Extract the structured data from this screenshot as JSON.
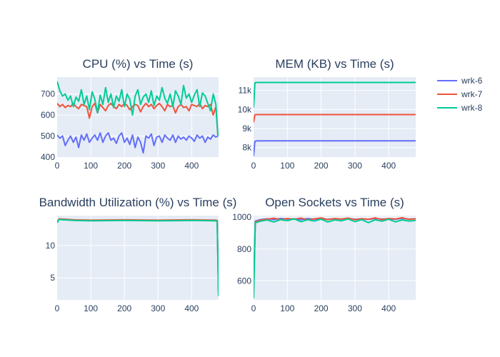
{
  "legend": {
    "items": [
      {
        "name": "wrk-6",
        "color": "#636efa"
      },
      {
        "name": "wrk-7",
        "color": "#ef553b"
      },
      {
        "name": "wrk-8",
        "color": "#00cc96"
      }
    ]
  },
  "chart_data": [
    {
      "type": "line",
      "title": "CPU (%) vs Time (s)",
      "xlabel": "",
      "ylabel": "",
      "xlim": [
        0,
        480
      ],
      "ylim": [
        400,
        780
      ],
      "xticks": [
        0,
        100,
        200,
        300,
        400
      ],
      "yticks": [
        400,
        500,
        600,
        700
      ],
      "ytick_labels": [
        "400",
        "500",
        "600",
        "700"
      ],
      "grid": true,
      "series": [
        {
          "name": "wrk-6",
          "color": "#636efa",
          "x": [
            0,
            8,
            16,
            24,
            32,
            40,
            48,
            56,
            64,
            72,
            80,
            88,
            96,
            104,
            112,
            120,
            128,
            136,
            144,
            152,
            160,
            168,
            176,
            184,
            192,
            200,
            208,
            216,
            224,
            232,
            240,
            248,
            256,
            264,
            272,
            280,
            288,
            296,
            304,
            312,
            320,
            328,
            336,
            344,
            352,
            360,
            368,
            376,
            384,
            392,
            400,
            408,
            416,
            424,
            432,
            440,
            448,
            456,
            464,
            472,
            478
          ],
          "y": [
            505,
            490,
            500,
            455,
            480,
            500,
            470,
            495,
            445,
            505,
            480,
            510,
            470,
            490,
            505,
            480,
            515,
            470,
            500,
            515,
            480,
            490,
            465,
            500,
            515,
            470,
            490,
            460,
            505,
            445,
            495,
            470,
            420,
            500,
            490,
            510,
            455,
            495,
            500,
            470,
            505,
            490,
            480,
            505,
            470,
            500,
            485,
            495,
            480,
            500,
            490,
            475,
            505,
            490,
            500,
            470,
            495,
            485,
            505,
            495,
            500
          ]
        },
        {
          "name": "wrk-7",
          "color": "#ef553b",
          "x": [
            0,
            8,
            16,
            24,
            32,
            40,
            48,
            56,
            64,
            72,
            80,
            88,
            96,
            104,
            112,
            120,
            128,
            136,
            144,
            152,
            160,
            168,
            176,
            184,
            192,
            200,
            208,
            216,
            224,
            232,
            240,
            248,
            256,
            264,
            272,
            280,
            288,
            296,
            304,
            312,
            320,
            328,
            336,
            344,
            352,
            360,
            368,
            376,
            384,
            392,
            400,
            408,
            416,
            424,
            432,
            440,
            448,
            456,
            464,
            472,
            478
          ],
          "y": [
            655,
            640,
            650,
            635,
            645,
            640,
            655,
            640,
            630,
            650,
            645,
            640,
            585,
            640,
            655,
            610,
            650,
            635,
            620,
            645,
            655,
            640,
            630,
            650,
            640,
            655,
            645,
            625,
            640,
            650,
            645,
            615,
            640,
            655,
            640,
            650,
            630,
            645,
            655,
            640,
            620,
            650,
            640,
            645,
            610,
            640,
            650,
            635,
            640,
            620,
            650,
            645,
            640,
            655,
            630,
            645,
            640,
            650,
            600,
            640,
            500
          ]
        },
        {
          "name": "wrk-8",
          "color": "#00cc96",
          "x": [
            0,
            8,
            16,
            24,
            32,
            40,
            48,
            56,
            64,
            72,
            80,
            88,
            96,
            104,
            112,
            120,
            128,
            136,
            144,
            152,
            160,
            168,
            176,
            184,
            192,
            200,
            208,
            216,
            224,
            232,
            240,
            248,
            256,
            264,
            272,
            280,
            288,
            296,
            304,
            312,
            320,
            328,
            336,
            344,
            352,
            360,
            368,
            376,
            384,
            392,
            400,
            408,
            416,
            424,
            432,
            440,
            448,
            456,
            464,
            472,
            478
          ],
          "y": [
            760,
            715,
            690,
            700,
            670,
            690,
            640,
            685,
            665,
            720,
            650,
            690,
            625,
            710,
            675,
            610,
            695,
            650,
            730,
            660,
            700,
            635,
            690,
            665,
            720,
            640,
            700,
            675,
            600,
            690,
            720,
            650,
            685,
            700,
            660,
            715,
            645,
            690,
            670,
            730,
            680,
            655,
            700,
            640,
            715,
            690,
            650,
            740,
            680,
            700,
            660,
            695,
            720,
            640,
            705,
            690,
            655,
            620,
            700,
            650,
            500
          ]
        }
      ]
    },
    {
      "type": "line",
      "title": "MEM (KB) vs Time (s)",
      "xlabel": "",
      "ylabel": "",
      "xlim": [
        0,
        480
      ],
      "ylim": [
        7500,
        11700
      ],
      "xticks": [
        0,
        100,
        200,
        300,
        400
      ],
      "yticks": [
        8000,
        9000,
        10000,
        11000
      ],
      "ytick_labels": [
        "8k",
        "9k",
        "10k",
        "11k"
      ],
      "grid": true,
      "series": [
        {
          "name": "wrk-6",
          "color": "#636efa",
          "x": [
            0,
            4,
            10,
            480
          ],
          "y": [
            7550,
            8330,
            8350,
            8350
          ]
        },
        {
          "name": "wrk-7",
          "color": "#ef553b",
          "x": [
            0,
            4,
            10,
            480
          ],
          "y": [
            9320,
            9720,
            9730,
            9730
          ]
        },
        {
          "name": "wrk-8",
          "color": "#00cc96",
          "x": [
            0,
            4,
            10,
            480
          ],
          "y": [
            10100,
            11400,
            11420,
            11420
          ]
        }
      ]
    },
    {
      "type": "line",
      "title": "Bandwidth Utilization (%) vs Time (s)",
      "xlabel": "",
      "ylabel": "",
      "xlim": [
        0,
        480
      ],
      "ylim": [
        1.6,
        14.6
      ],
      "xticks": [
        0,
        100,
        200,
        300,
        400
      ],
      "yticks": [
        5,
        10
      ],
      "ytick_labels": [
        "5",
        "10"
      ],
      "grid": true,
      "series": [
        {
          "name": "wrk-6",
          "color": "#636efa",
          "x": [
            0,
            6,
            50,
            100,
            200,
            300,
            400,
            470,
            476,
            480
          ],
          "y": [
            13.7,
            14.0,
            13.9,
            13.85,
            13.9,
            13.85,
            13.9,
            13.85,
            13.8,
            2.3
          ]
        },
        {
          "name": "wrk-7",
          "color": "#ef553b",
          "x": [
            0,
            6,
            50,
            100,
            200,
            300,
            400,
            470,
            476,
            480
          ],
          "y": [
            13.6,
            14.1,
            13.95,
            13.9,
            13.95,
            13.9,
            13.95,
            13.9,
            13.85,
            2.2
          ]
        },
        {
          "name": "wrk-8",
          "color": "#00cc96",
          "x": [
            0,
            6,
            50,
            100,
            200,
            300,
            400,
            470,
            476,
            480
          ],
          "y": [
            13.5,
            14.0,
            13.85,
            13.8,
            13.85,
            13.8,
            13.85,
            13.8,
            13.75,
            2.2
          ]
        }
      ]
    },
    {
      "type": "line",
      "title": "Open Sockets vs Time (s)",
      "xlabel": "",
      "ylabel": "",
      "xlim": [
        0,
        480
      ],
      "ylim": [
        480,
        1010
      ],
      "xticks": [
        0,
        100,
        200,
        300,
        400
      ],
      "yticks": [
        600,
        800,
        1000
      ],
      "ytick_labels": [
        "600",
        "800",
        "1000"
      ],
      "grid": true,
      "series": [
        {
          "name": "wrk-6",
          "color": "#636efa",
          "x": [
            0,
            5,
            20,
            40,
            60,
            80,
            100,
            120,
            140,
            160,
            180,
            200,
            220,
            240,
            260,
            280,
            300,
            320,
            340,
            360,
            380,
            400,
            420,
            440,
            460,
            480
          ],
          "y": [
            560,
            975,
            985,
            990,
            985,
            992,
            988,
            990,
            985,
            992,
            987,
            990,
            986,
            991,
            988,
            993,
            987,
            990,
            986,
            992,
            988,
            990,
            987,
            993,
            988,
            990
          ]
        },
        {
          "name": "wrk-7",
          "color": "#ef553b",
          "x": [
            0,
            5,
            20,
            40,
            60,
            80,
            100,
            120,
            140,
            160,
            180,
            200,
            220,
            240,
            260,
            280,
            300,
            320,
            340,
            360,
            380,
            400,
            420,
            440,
            460,
            480
          ],
          "y": [
            520,
            970,
            982,
            988,
            994,
            985,
            992,
            987,
            995,
            983,
            990,
            996,
            985,
            992,
            988,
            995,
            984,
            991,
            987,
            996,
            985,
            992,
            989,
            997,
            986,
            991
          ]
        },
        {
          "name": "wrk-8",
          "color": "#00cc96",
          "x": [
            0,
            5,
            20,
            40,
            60,
            80,
            100,
            120,
            140,
            160,
            180,
            200,
            220,
            240,
            260,
            280,
            300,
            320,
            340,
            360,
            380,
            400,
            420,
            440,
            460,
            480
          ],
          "y": [
            490,
            965,
            975,
            982,
            970,
            985,
            978,
            990,
            972,
            984,
            976,
            988,
            970,
            983,
            977,
            989,
            972,
            985,
            966,
            984,
            975,
            987,
            971,
            983,
            976,
            980
          ]
        }
      ]
    }
  ]
}
